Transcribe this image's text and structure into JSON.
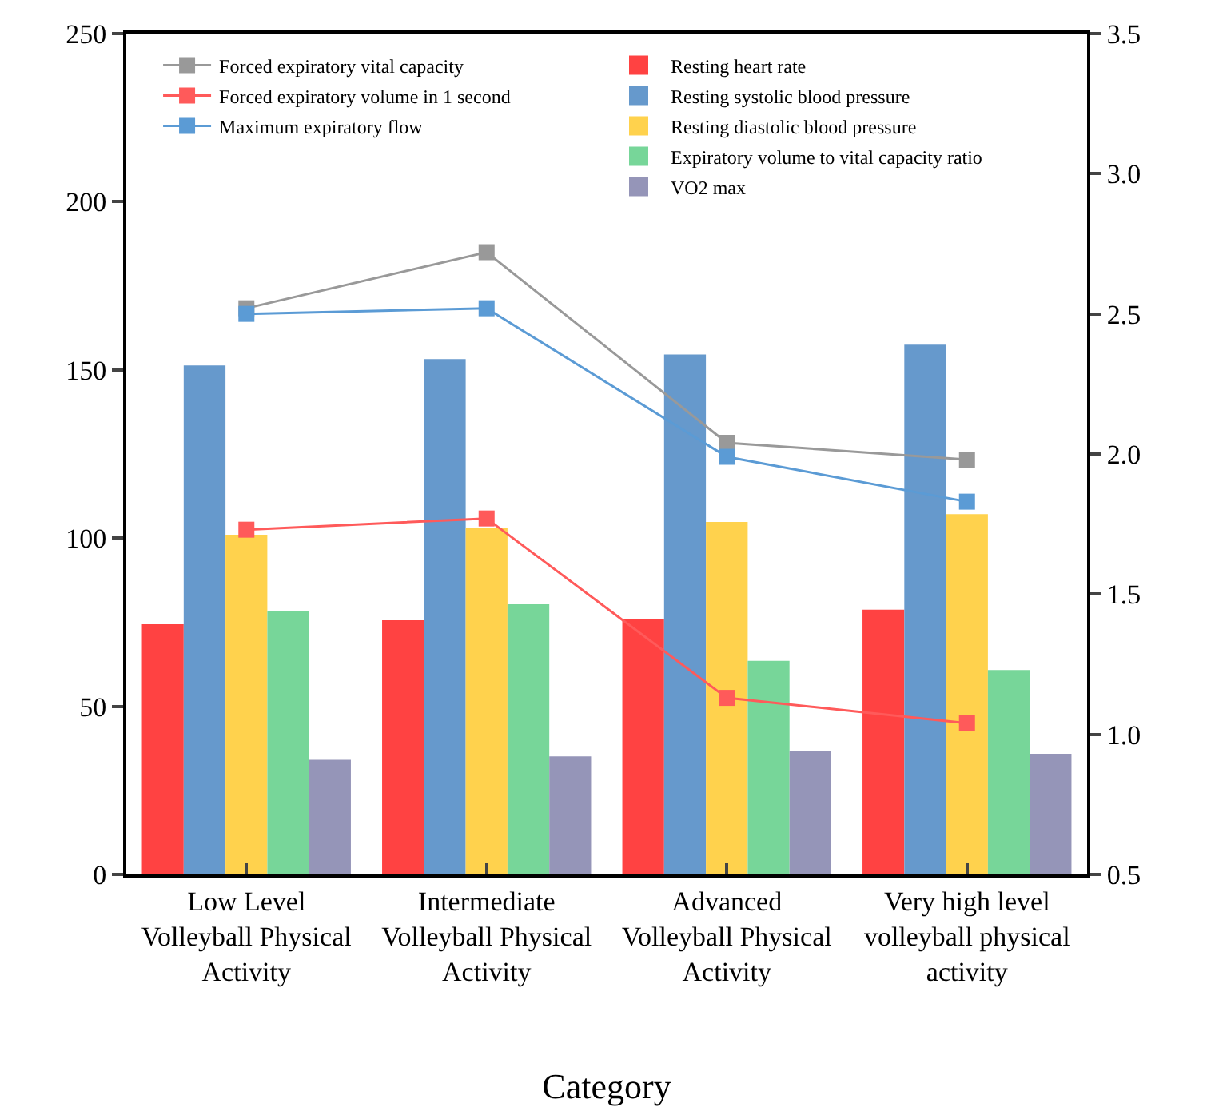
{
  "chart_data": {
    "type": "bar",
    "xlabel": "Category",
    "categories": [
      "Low Level Volleyball Physical Activity",
      "Intermediate Volleyball Physical Activity",
      "Advanced Volleyball Physical Activity",
      "Very high level volleyball physical activity"
    ],
    "series": [
      {
        "name": "Forced expiratory vital capacity",
        "type": "line",
        "axis": "y2",
        "color": "#999999",
        "values": [
          2.52,
          2.72,
          2.04,
          1.98
        ]
      },
      {
        "name": "Forced expiratory volume in 1 second",
        "type": "line",
        "axis": "y2",
        "color": "#ff5a5a",
        "values": [
          1.73,
          1.77,
          1.13,
          1.04
        ]
      },
      {
        "name": "Maximum expiratory flow",
        "type": "line",
        "axis": "y2",
        "color": "#5b9bd5",
        "values": [
          2.5,
          2.52,
          1.99,
          1.83
        ]
      },
      {
        "name": "Resting heart rate",
        "color": "#ff4242",
        "values": [
          74.4,
          75.6,
          76,
          78.7
        ]
      },
      {
        "name": "Resting systolic blood pressure",
        "color": "#6699cc",
        "values": [
          151.3,
          153.2,
          154.6,
          157.5
        ]
      },
      {
        "name": "Resting diastolic blood pressure",
        "color": "#ffd24d",
        "values": [
          101,
          102.9,
          104.8,
          107.1
        ]
      },
      {
        "name": "Expiratory volume to vital capacity ratio",
        "color": "#77d699",
        "values": [
          78.2,
          80.3,
          63.5,
          60.8
        ]
      },
      {
        "name": "VO2 max",
        "color": "#9595b8",
        "values": [
          34.1,
          35.1,
          36.7,
          35.9
        ]
      }
    ],
    "ylim": [
      0,
      250
    ],
    "yticks": [
      0,
      50,
      100,
      150,
      200,
      250
    ],
    "y2lim": [
      0.5,
      3.5
    ],
    "y2ticks": [
      {
        "value": 0.5,
        "label": "0.5"
      },
      {
        "value": 1.0,
        "label": "1.0"
      },
      {
        "value": 1.5,
        "label": "1.5"
      },
      {
        "value": 2.0,
        "label": "2.0"
      },
      {
        "value": 2.5,
        "label": "2.5"
      },
      {
        "value": 3.0,
        "label": "3.0"
      },
      {
        "value": 3.5,
        "label": "3.5"
      }
    ],
    "marker": "square",
    "legend": "top"
  }
}
